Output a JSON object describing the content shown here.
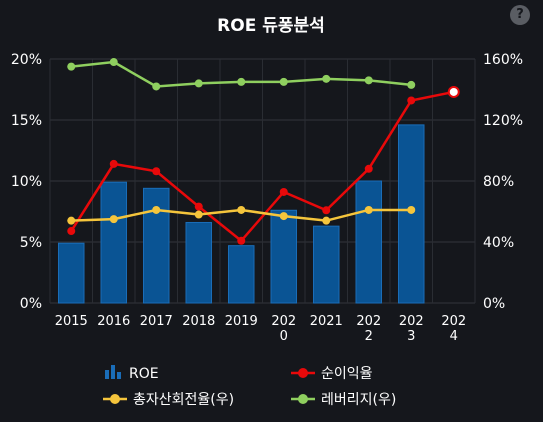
{
  "help_button": {
    "label": "?"
  },
  "chart_data": {
    "type": "bar",
    "title": "ROE 듀퐁분석",
    "categories": [
      "2015",
      "2016",
      "2017",
      "2018",
      "2019",
      "2020",
      "2021",
      "2022",
      "2023",
      "2024"
    ],
    "category_labels": [
      [
        "2015"
      ],
      [
        "2016"
      ],
      [
        "2017"
      ],
      [
        "2018"
      ],
      [
        "2019"
      ],
      [
        "202",
        "0"
      ],
      [
        "2021"
      ],
      [
        "202",
        "2"
      ],
      [
        "202",
        "3"
      ],
      [
        "202",
        "4"
      ]
    ],
    "y_left": {
      "ylim": [
        0,
        20
      ],
      "ticks": [
        "0%",
        "5%",
        "10%",
        "15%",
        "20%"
      ]
    },
    "y_right": {
      "ylim": [
        0,
        160
      ],
      "ticks": [
        "0%",
        "40%",
        "80%",
        "120%",
        "160%"
      ]
    },
    "grid": true,
    "legend_position": "bottom",
    "series": [
      {
        "name": "ROE",
        "type": "bar",
        "axis": "left",
        "color": "#0a5494",
        "values": [
          4.9,
          9.9,
          9.4,
          6.6,
          4.7,
          7.6,
          6.3,
          10.0,
          14.6,
          null
        ]
      },
      {
        "name": "순이익율",
        "type": "line",
        "axis": "left",
        "color": "#e8090a",
        "values": [
          5.9,
          11.4,
          10.8,
          7.9,
          5.1,
          9.1,
          7.6,
          11.0,
          16.6,
          17.3
        ],
        "last_hollow": true
      },
      {
        "name": "총자산회전율(우)",
        "type": "line",
        "axis": "right",
        "color": "#f5c53c",
        "values": [
          54,
          55,
          61,
          58,
          61,
          57,
          54,
          61,
          61,
          null
        ]
      },
      {
        "name": "레버리지(우)",
        "type": "line",
        "axis": "right",
        "color": "#8fcf5f",
        "values": [
          155,
          158,
          142,
          144,
          145,
          145,
          147,
          146,
          143,
          null
        ]
      }
    ]
  }
}
